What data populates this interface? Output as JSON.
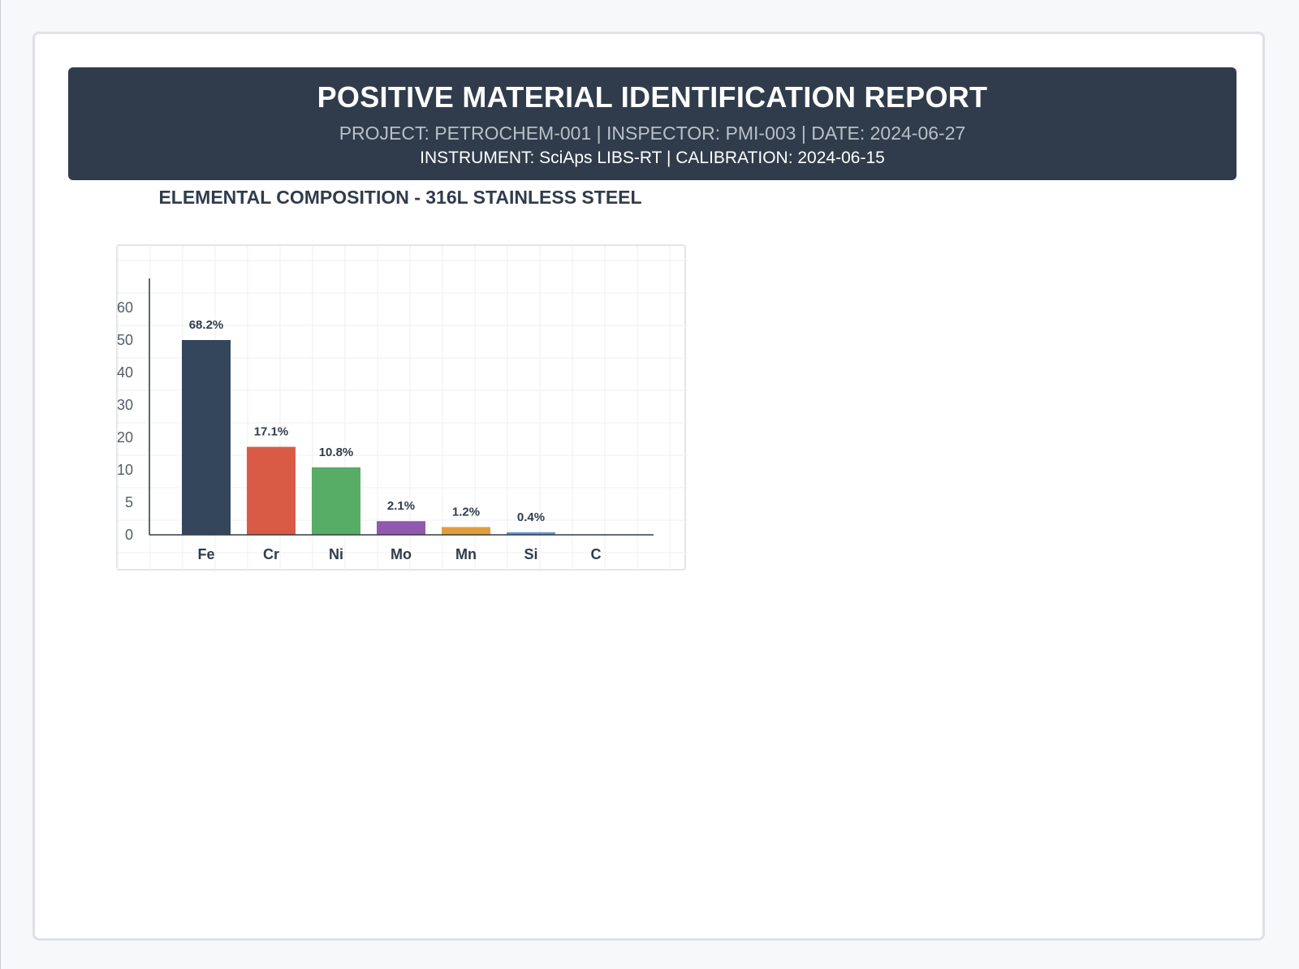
{
  "report": {
    "title": "POSITIVE MATERIAL IDENTIFICATION REPORT",
    "meta": "PROJECT: PETROCHEM-001 | INSPECTOR: PMI-003 | DATE: 2024-06-27",
    "instrument": "INSTRUMENT: SciAps LIBS-RT | CALIBRATION: 2024-06-15"
  },
  "chart_data": {
    "type": "bar",
    "title": "ELEMENTAL COMPOSITION - 316L STAINLESS STEEL",
    "xlabel": "",
    "ylabel": "",
    "categories": [
      "Fe",
      "Cr",
      "Ni",
      "Mo",
      "Mn",
      "Si",
      "C"
    ],
    "values": [
      68.2,
      17.1,
      10.8,
      2.1,
      1.2,
      0.4,
      0.03
    ],
    "data_labels": [
      "68.2%",
      "17.1%",
      "10.8%",
      "2.1%",
      "1.2%",
      "0.4%",
      ""
    ],
    "y_ticks": [
      0,
      5,
      10,
      20,
      30,
      40,
      50,
      60
    ],
    "y_scale": "piecewise (0-5 expanded, then linear), bars clipped at 50",
    "colors": [
      "#34465c",
      "#d95b45",
      "#58ad66",
      "#9158b0",
      "#e39e3c",
      "#5f95cc",
      "#b0b6bf"
    ],
    "grid": true,
    "legend": "none"
  }
}
